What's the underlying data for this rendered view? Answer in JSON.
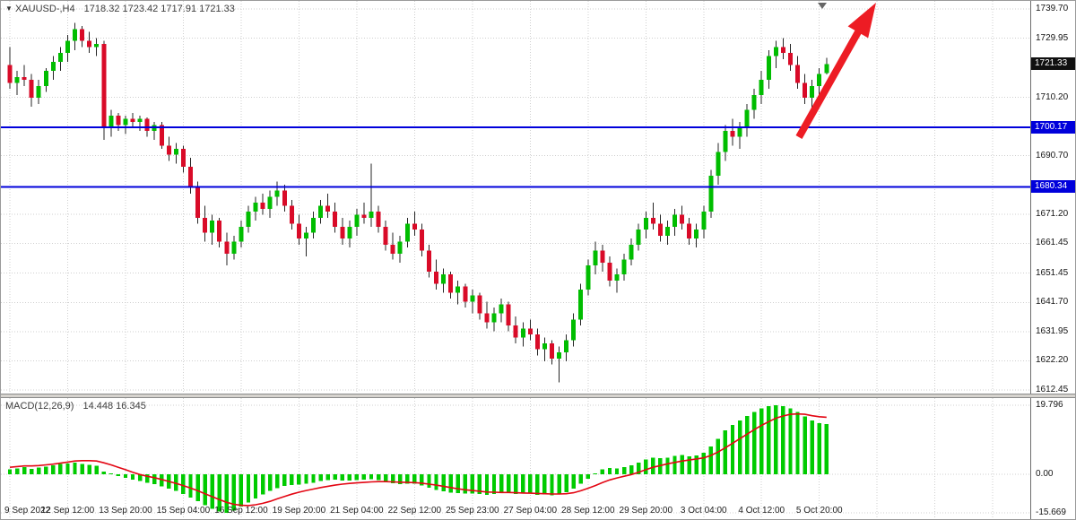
{
  "header": {
    "dropdown_icon": "▼",
    "title": "XAUUSD-,H4",
    "ohlc": "1718.32 1723.42 1717.91 1721.33"
  },
  "colors": {
    "bull": "#00bd00",
    "bear": "#d90b28",
    "wick": "#262626",
    "level_blue": "#0000db",
    "macd_hist": "#00cb00",
    "macd_signal": "#e30613",
    "arrow": "#ed1c24",
    "grid": "#cfcfcf"
  },
  "chart_data": [
    {
      "type": "candlestick",
      "symbol": "XAUUSD-",
      "timeframe": "H4",
      "ylim": [
        1612.45,
        1739.7
      ],
      "y_ticks": [
        {
          "text": "1739.70",
          "value": 1739.7
        },
        {
          "text": "1729.95",
          "value": 1729.95
        },
        {
          "text": "1710.20",
          "value": 1710.2
        },
        {
          "text": "1690.70",
          "value": 1690.7
        },
        {
          "text": "1671.20",
          "value": 1671.2
        },
        {
          "text": "1661.45",
          "value": 1661.45
        },
        {
          "text": "1651.45",
          "value": 1651.45
        },
        {
          "text": "1641.70",
          "value": 1641.7
        },
        {
          "text": "1631.95",
          "value": 1631.95
        },
        {
          "text": "1622.20",
          "value": 1622.2
        },
        {
          "text": "1612.45",
          "value": 1612.45
        }
      ],
      "x_labels": [
        "9 Sep 2022",
        "12 Sep 12:00",
        "13 Sep 20:00",
        "15 Sep 04:00",
        "16 Sep 12:00",
        "19 Sep 20:00",
        "21 Sep 04:00",
        "22 Sep 12:00",
        "25 Sep 23:00",
        "27 Sep 04:00",
        "28 Sep 12:00",
        "29 Sep 20:00",
        "3 Oct 04:00",
        "4 Oct 12:00",
        "5 Oct 20:00"
      ],
      "candles_per_label": 8,
      "current_price": {
        "text": "1721.33",
        "value": 1721.33
      },
      "horizontal_levels": [
        {
          "text": "1700.17",
          "value": 1700.17,
          "color": "#0000db"
        },
        {
          "text": "1680.34",
          "value": 1680.34,
          "color": "#0000db"
        }
      ],
      "annotations": [
        {
          "type": "arrow",
          "direction": "up-right",
          "color": "#ed1c24"
        }
      ],
      "candles": [
        [
          1721,
          1727,
          1713,
          1715
        ],
        [
          1715,
          1719,
          1711,
          1717
        ],
        [
          1717,
          1721,
          1714,
          1716
        ],
        [
          1716,
          1718,
          1707,
          1710
        ],
        [
          1710,
          1716,
          1708,
          1714
        ],
        [
          1714,
          1720,
          1712,
          1719
        ],
        [
          1719,
          1724,
          1716,
          1722
        ],
        [
          1722,
          1727,
          1719,
          1725
        ],
        [
          1725,
          1731,
          1722,
          1729
        ],
        [
          1729,
          1735,
          1726,
          1733
        ],
        [
          1733,
          1734,
          1727,
          1729
        ],
        [
          1729,
          1732,
          1725,
          1727
        ],
        [
          1727,
          1730,
          1724,
          1728
        ],
        [
          1728,
          1729,
          1696,
          1700
        ],
        [
          1700,
          1706,
          1697,
          1704
        ],
        [
          1704,
          1705,
          1699,
          1701
        ],
        [
          1701,
          1704,
          1698,
          1703
        ],
        [
          1703,
          1705,
          1700,
          1702
        ],
        [
          1702,
          1704,
          1699,
          1703
        ],
        [
          1703,
          1703.5,
          1697,
          1699
        ],
        [
          1699,
          1702,
          1696,
          1701
        ],
        [
          1701,
          1702,
          1693,
          1694
        ],
        [
          1694,
          1697,
          1689,
          1691
        ],
        [
          1691,
          1695,
          1688,
          1693
        ],
        [
          1693,
          1694,
          1685,
          1687
        ],
        [
          1687,
          1690,
          1678,
          1680
        ],
        [
          1680,
          1682,
          1668,
          1670
        ],
        [
          1670,
          1674,
          1662,
          1665
        ],
        [
          1665,
          1671,
          1661,
          1669
        ],
        [
          1669,
          1670,
          1660,
          1662
        ],
        [
          1662,
          1665,
          1654,
          1658
        ],
        [
          1658,
          1664,
          1656,
          1662
        ],
        [
          1662,
          1669,
          1660,
          1667
        ],
        [
          1667,
          1674,
          1665,
          1672
        ],
        [
          1672,
          1677,
          1669,
          1675
        ],
        [
          1675,
          1678,
          1671,
          1673
        ],
        [
          1673,
          1679,
          1670,
          1677
        ],
        [
          1677,
          1682,
          1674,
          1679
        ],
        [
          1679,
          1681,
          1672,
          1674
        ],
        [
          1674,
          1676,
          1666,
          1668
        ],
        [
          1668,
          1671,
          1661,
          1663
        ],
        [
          1663,
          1667,
          1657,
          1665
        ],
        [
          1665,
          1672,
          1663,
          1670
        ],
        [
          1670,
          1676,
          1668,
          1674
        ],
        [
          1674,
          1678,
          1670,
          1672
        ],
        [
          1672,
          1675,
          1665,
          1667
        ],
        [
          1667,
          1670,
          1661,
          1663
        ],
        [
          1663,
          1669,
          1660,
          1667
        ],
        [
          1667,
          1673,
          1664,
          1671
        ],
        [
          1671,
          1675,
          1668,
          1670
        ],
        [
          1670,
          1688,
          1667,
          1672
        ],
        [
          1672,
          1674,
          1665,
          1667
        ],
        [
          1667,
          1669,
          1659,
          1661
        ],
        [
          1661,
          1665,
          1656,
          1658
        ],
        [
          1658,
          1664,
          1655,
          1662
        ],
        [
          1662,
          1670,
          1660,
          1668
        ],
        [
          1668,
          1672,
          1664,
          1666
        ],
        [
          1666,
          1668,
          1657,
          1659
        ],
        [
          1659,
          1661,
          1650,
          1652
        ],
        [
          1652,
          1656,
          1646,
          1648
        ],
        [
          1648,
          1653,
          1645,
          1651
        ],
        [
          1651,
          1652,
          1643,
          1645
        ],
        [
          1645,
          1649,
          1641,
          1647
        ],
        [
          1647,
          1648,
          1640,
          1642
        ],
        [
          1642,
          1646,
          1638,
          1644
        ],
        [
          1644,
          1645,
          1636,
          1638
        ],
        [
          1638,
          1642,
          1633,
          1635
        ],
        [
          1635,
          1640,
          1632,
          1638
        ],
        [
          1638,
          1643,
          1635,
          1641
        ],
        [
          1641,
          1642,
          1632,
          1634
        ],
        [
          1634,
          1637,
          1628,
          1630
        ],
        [
          1630,
          1635,
          1627,
          1633
        ],
        [
          1633,
          1636,
          1629,
          1631
        ],
        [
          1631,
          1633,
          1624,
          1626
        ],
        [
          1626,
          1630,
          1622,
          1628
        ],
        [
          1628,
          1629,
          1621,
          1623
        ],
        [
          1623,
          1627,
          1615,
          1625
        ],
        [
          1625,
          1631,
          1622,
          1629
        ],
        [
          1629,
          1638,
          1627,
          1636
        ],
        [
          1636,
          1648,
          1634,
          1646
        ],
        [
          1646,
          1656,
          1644,
          1654
        ],
        [
          1654,
          1662,
          1651,
          1659
        ],
        [
          1659,
          1661,
          1652,
          1655
        ],
        [
          1655,
          1657,
          1647,
          1649
        ],
        [
          1649,
          1653,
          1645,
          1651
        ],
        [
          1651,
          1658,
          1649,
          1656
        ],
        [
          1656,
          1663,
          1654,
          1661
        ],
        [
          1661,
          1668,
          1659,
          1666
        ],
        [
          1666,
          1672,
          1663,
          1670
        ],
        [
          1670,
          1675,
          1666,
          1668
        ],
        [
          1668,
          1671,
          1662,
          1664
        ],
        [
          1664,
          1669,
          1661,
          1667
        ],
        [
          1667,
          1673,
          1664,
          1671
        ],
        [
          1671,
          1674,
          1666,
          1668
        ],
        [
          1668,
          1670,
          1661,
          1663
        ],
        [
          1663,
          1668,
          1660,
          1666
        ],
        [
          1666,
          1674,
          1663,
          1672
        ],
        [
          1672,
          1686,
          1670,
          1684
        ],
        [
          1684,
          1695,
          1681,
          1692
        ],
        [
          1692,
          1701,
          1689,
          1699
        ],
        [
          1699,
          1703,
          1694,
          1697
        ],
        [
          1697,
          1702,
          1693,
          1700
        ],
        [
          1700,
          1708,
          1697,
          1706
        ],
        [
          1706,
          1713,
          1703,
          1711
        ],
        [
          1711,
          1719,
          1708,
          1716
        ],
        [
          1716,
          1726,
          1713,
          1724
        ],
        [
          1724,
          1729,
          1720,
          1727
        ],
        [
          1727,
          1730,
          1723,
          1725
        ],
        [
          1725,
          1728,
          1719,
          1721
        ],
        [
          1721,
          1724,
          1713,
          1715
        ],
        [
          1715,
          1718,
          1708,
          1710
        ],
        [
          1710,
          1716,
          1706,
          1714
        ],
        [
          1714,
          1720,
          1711,
          1718
        ],
        [
          1718.32,
          1723.42,
          1717.91,
          1721.33
        ]
      ]
    },
    {
      "type": "bar",
      "title": "MACD(12,26,9)",
      "values_display": "14.448 16.345",
      "y_ticks": [
        {
          "text": "19.796",
          "value": 19.796
        },
        {
          "text": "0.00",
          "value": 0
        },
        {
          "text": "-15.669",
          "value": -15.669
        }
      ],
      "histogram": [
        1.4,
        1.7,
        2.0,
        1.6,
        1.9,
        2.2,
        2.6,
        2.9,
        3.1,
        3.3,
        3.0,
        2.7,
        2.4,
        0.8,
        0.2,
        -0.8,
        -1.5,
        -2.2,
        -2.8,
        -3.4,
        -4.0,
        -4.9,
        -5.9,
        -6.8,
        -8.0,
        -9.5,
        -11.0,
        -12.5,
        -14.0,
        -15.2,
        -15.669,
        -14.8,
        -13.2,
        -11.5,
        -9.8,
        -8.2,
        -6.8,
        -5.6,
        -4.8,
        -4.4,
        -4.2,
        -3.9,
        -3.4,
        -2.8,
        -2.4,
        -2.2,
        -2.5,
        -2.6,
        -2.4,
        -2.2,
        -2.0,
        -2.3,
        -2.9,
        -3.6,
        -4.0,
        -3.8,
        -3.9,
        -4.5,
        -5.4,
        -6.4,
        -6.9,
        -7.4,
        -7.6,
        -7.9,
        -7.8,
        -8.0,
        -8.3,
        -8.1,
        -7.6,
        -7.7,
        -8.0,
        -7.8,
        -7.9,
        -8.3,
        -8.2,
        -8.5,
        -8.1,
        -7.2,
        -5.8,
        -3.9,
        -1.8,
        0.2,
        1.4,
        1.8,
        1.7,
        2.0,
        2.6,
        3.4,
        4.2,
        4.7,
        4.6,
        4.8,
        5.3,
        5.5,
        5.2,
        5.4,
        6.2,
        8.0,
        10.2,
        12.6,
        14.2,
        15.4,
        16.7,
        17.9,
        18.9,
        19.6,
        19.796,
        19.5,
        18.9,
        17.9,
        16.6,
        15.4,
        14.7,
        14.448
      ],
      "series": [
        {
          "name": "signal",
          "color": "#e30613",
          "values": [
            2.0,
            2.2,
            2.4,
            2.4,
            2.5,
            2.7,
            2.9,
            3.2,
            3.5,
            3.8,
            3.9,
            3.9,
            3.8,
            3.3,
            2.7,
            2.0,
            1.3,
            0.6,
            -0.1,
            -0.8,
            -1.4,
            -2.1,
            -2.9,
            -3.7,
            -4.6,
            -5.6,
            -6.7,
            -7.9,
            -9.1,
            -10.3,
            -11.4,
            -12.2,
            -12.6,
            -12.7,
            -12.4,
            -11.8,
            -11.0,
            -10.0,
            -9.0,
            -8.1,
            -7.3,
            -6.6,
            -6.0,
            -5.4,
            -4.9,
            -4.4,
            -4.0,
            -3.7,
            -3.5,
            -3.3,
            -3.1,
            -3.0,
            -3.0,
            -3.1,
            -3.2,
            -3.3,
            -3.4,
            -3.6,
            -4.0,
            -4.4,
            -4.9,
            -5.4,
            -5.9,
            -6.3,
            -6.6,
            -6.9,
            -7.2,
            -7.3,
            -7.4,
            -7.4,
            -7.5,
            -7.6,
            -7.7,
            -7.8,
            -7.9,
            -8.0,
            -8.0,
            -7.9,
            -7.5,
            -6.7,
            -5.7,
            -4.6,
            -3.4,
            -2.3,
            -1.5,
            -0.8,
            -0.1,
            0.6,
            1.3,
            2.0,
            2.5,
            3.0,
            3.4,
            3.8,
            4.1,
            4.4,
            4.7,
            5.4,
            6.4,
            7.6,
            8.9,
            10.2,
            11.5,
            12.8,
            14.0,
            15.1,
            16.1,
            16.7,
            17.2,
            17.3,
            17.2,
            16.8,
            16.5,
            16.345
          ]
        }
      ]
    }
  ]
}
